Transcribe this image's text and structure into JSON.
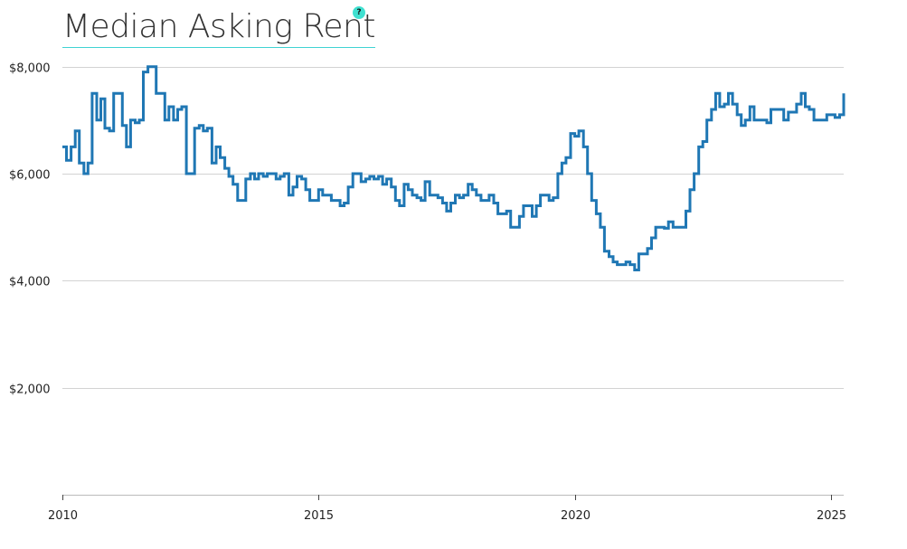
{
  "title": "Median Asking Rent",
  "help_icon": {
    "icon": "question-icon",
    "glyph": "?"
  },
  "chart_data": {
    "type": "line",
    "interpolation": "step",
    "title": "Median Asking Rent",
    "xlabel": "",
    "ylabel": "",
    "xlim": [
      2010.0,
      2025.25
    ],
    "ylim": [
      0,
      8400
    ],
    "grid": "horizontal",
    "y_ticks": [
      {
        "value": 2000,
        "label": "$2,000"
      },
      {
        "value": 4000,
        "label": "$4,000"
      },
      {
        "value": 6000,
        "label": "$6,000"
      },
      {
        "value": 8000,
        "label": "$8,000"
      }
    ],
    "x_ticks": [
      {
        "value": 2010,
        "label": "2010"
      },
      {
        "value": 2015,
        "label": "2015"
      },
      {
        "value": 2020,
        "label": "2020"
      },
      {
        "value": 2025,
        "label": "2025"
      }
    ],
    "line_color": "#1f77b4",
    "series": [
      {
        "values": [
          [
            2010.0,
            6500
          ],
          [
            2010.08,
            6250
          ],
          [
            2010.17,
            6500
          ],
          [
            2010.25,
            6800
          ],
          [
            2010.33,
            6200
          ],
          [
            2010.42,
            6000
          ],
          [
            2010.5,
            6200
          ],
          [
            2010.58,
            7500
          ],
          [
            2010.67,
            7000
          ],
          [
            2010.75,
            7400
          ],
          [
            2010.83,
            6850
          ],
          [
            2010.92,
            6800
          ],
          [
            2011.0,
            7500
          ],
          [
            2011.17,
            6900
          ],
          [
            2011.25,
            6500
          ],
          [
            2011.33,
            7000
          ],
          [
            2011.42,
            6950
          ],
          [
            2011.5,
            7000
          ],
          [
            2011.58,
            7900
          ],
          [
            2011.67,
            8000
          ],
          [
            2011.83,
            7500
          ],
          [
            2012.0,
            7000
          ],
          [
            2012.08,
            7250
          ],
          [
            2012.17,
            7000
          ],
          [
            2012.25,
            7200
          ],
          [
            2012.33,
            7250
          ],
          [
            2012.42,
            6000
          ],
          [
            2012.58,
            6850
          ],
          [
            2012.67,
            6900
          ],
          [
            2012.75,
            6800
          ],
          [
            2012.83,
            6850
          ],
          [
            2012.92,
            6200
          ],
          [
            2013.0,
            6500
          ],
          [
            2013.08,
            6300
          ],
          [
            2013.17,
            6100
          ],
          [
            2013.25,
            5950
          ],
          [
            2013.33,
            5800
          ],
          [
            2013.42,
            5500
          ],
          [
            2013.58,
            5900
          ],
          [
            2013.67,
            6000
          ],
          [
            2013.75,
            5900
          ],
          [
            2013.83,
            6000
          ],
          [
            2013.92,
            5950
          ],
          [
            2014.0,
            6000
          ],
          [
            2014.17,
            5900
          ],
          [
            2014.25,
            5950
          ],
          [
            2014.33,
            6000
          ],
          [
            2014.42,
            5600
          ],
          [
            2014.5,
            5750
          ],
          [
            2014.58,
            5950
          ],
          [
            2014.67,
            5900
          ],
          [
            2014.75,
            5700
          ],
          [
            2014.83,
            5500
          ],
          [
            2015.0,
            5700
          ],
          [
            2015.08,
            5600
          ],
          [
            2015.25,
            5500
          ],
          [
            2015.42,
            5400
          ],
          [
            2015.5,
            5450
          ],
          [
            2015.58,
            5750
          ],
          [
            2015.67,
            6000
          ],
          [
            2015.83,
            5850
          ],
          [
            2015.92,
            5900
          ],
          [
            2016.0,
            5950
          ],
          [
            2016.08,
            5900
          ],
          [
            2016.17,
            5950
          ],
          [
            2016.25,
            5800
          ],
          [
            2016.33,
            5900
          ],
          [
            2016.42,
            5750
          ],
          [
            2016.5,
            5500
          ],
          [
            2016.58,
            5400
          ],
          [
            2016.67,
            5800
          ],
          [
            2016.75,
            5700
          ],
          [
            2016.83,
            5600
          ],
          [
            2016.92,
            5550
          ],
          [
            2017.0,
            5500
          ],
          [
            2017.08,
            5850
          ],
          [
            2017.17,
            5600
          ],
          [
            2017.33,
            5550
          ],
          [
            2017.42,
            5450
          ],
          [
            2017.5,
            5300
          ],
          [
            2017.58,
            5450
          ],
          [
            2017.67,
            5600
          ],
          [
            2017.75,
            5550
          ],
          [
            2017.83,
            5600
          ],
          [
            2017.92,
            5800
          ],
          [
            2018.0,
            5700
          ],
          [
            2018.08,
            5600
          ],
          [
            2018.17,
            5500
          ],
          [
            2018.33,
            5600
          ],
          [
            2018.42,
            5450
          ],
          [
            2018.5,
            5250
          ],
          [
            2018.67,
            5300
          ],
          [
            2018.75,
            5000
          ],
          [
            2018.92,
            5200
          ],
          [
            2019.0,
            5400
          ],
          [
            2019.17,
            5200
          ],
          [
            2019.25,
            5400
          ],
          [
            2019.33,
            5600
          ],
          [
            2019.5,
            5500
          ],
          [
            2019.58,
            5550
          ],
          [
            2019.67,
            6000
          ],
          [
            2019.75,
            6200
          ],
          [
            2019.83,
            6300
          ],
          [
            2019.92,
            6750
          ],
          [
            2020.0,
            6700
          ],
          [
            2020.08,
            6800
          ],
          [
            2020.17,
            6500
          ],
          [
            2020.25,
            6000
          ],
          [
            2020.33,
            5500
          ],
          [
            2020.42,
            5250
          ],
          [
            2020.5,
            5000
          ],
          [
            2020.58,
            4550
          ],
          [
            2020.67,
            4450
          ],
          [
            2020.75,
            4350
          ],
          [
            2020.83,
            4300
          ],
          [
            2021.0,
            4350
          ],
          [
            2021.08,
            4300
          ],
          [
            2021.17,
            4200
          ],
          [
            2021.25,
            4500
          ],
          [
            2021.42,
            4600
          ],
          [
            2021.5,
            4800
          ],
          [
            2021.58,
            5000
          ],
          [
            2021.75,
            4980
          ],
          [
            2021.83,
            5100
          ],
          [
            2021.92,
            5000
          ],
          [
            2022.17,
            5300
          ],
          [
            2022.25,
            5700
          ],
          [
            2022.33,
            6000
          ],
          [
            2022.42,
            6500
          ],
          [
            2022.5,
            6600
          ],
          [
            2022.58,
            7000
          ],
          [
            2022.67,
            7200
          ],
          [
            2022.75,
            7500
          ],
          [
            2022.83,
            7250
          ],
          [
            2022.92,
            7300
          ],
          [
            2023.0,
            7500
          ],
          [
            2023.08,
            7300
          ],
          [
            2023.17,
            7100
          ],
          [
            2023.25,
            6900
          ],
          [
            2023.33,
            7000
          ],
          [
            2023.42,
            7250
          ],
          [
            2023.5,
            7000
          ],
          [
            2023.75,
            6950
          ],
          [
            2023.83,
            7200
          ],
          [
            2024.08,
            7000
          ],
          [
            2024.17,
            7150
          ],
          [
            2024.33,
            7300
          ],
          [
            2024.42,
            7500
          ],
          [
            2024.5,
            7250
          ],
          [
            2024.58,
            7200
          ],
          [
            2024.67,
            7000
          ],
          [
            2024.92,
            7100
          ],
          [
            2025.08,
            7050
          ],
          [
            2025.17,
            7100
          ],
          [
            2025.25,
            7500
          ]
        ]
      }
    ]
  }
}
